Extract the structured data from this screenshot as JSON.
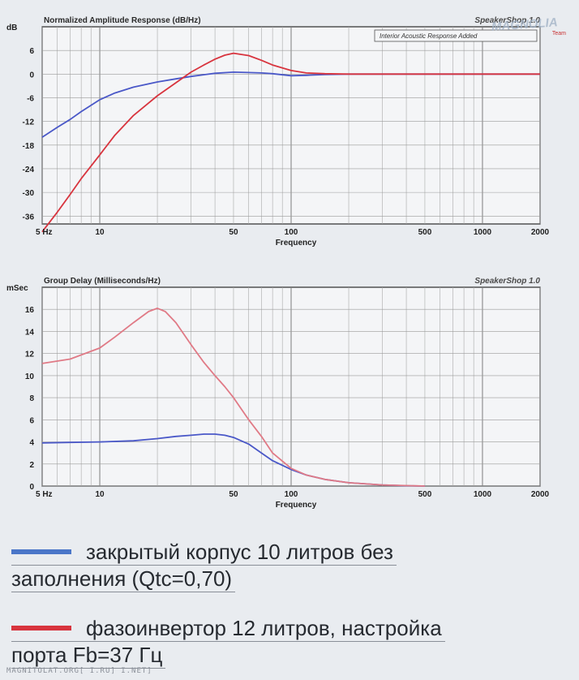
{
  "chart_data": [
    {
      "type": "line",
      "title": "Normalized Amplitude Response (dB/Hz)",
      "brand": "SpeakerShop 1.0",
      "legend_note": "Interior Acoustic Response Added",
      "xlabel": "Frequency",
      "ylabel": "dB",
      "x_scale": "log",
      "xlim": [
        5,
        2000
      ],
      "ylim": [
        -38,
        12
      ],
      "x_ticks": [
        {
          "value": 5,
          "label": "5 Hz"
        },
        {
          "value": 10,
          "label": "10"
        },
        {
          "value": 50,
          "label": "50"
        },
        {
          "value": 100,
          "label": "100"
        },
        {
          "value": 500,
          "label": "500"
        },
        {
          "value": 1000,
          "label": "1000"
        },
        {
          "value": 2000,
          "label": "2000"
        }
      ],
      "y_ticks": [
        {
          "value": 6,
          "label": "6"
        },
        {
          "value": 0,
          "label": "0"
        },
        {
          "value": -6,
          "label": "-6"
        },
        {
          "value": -12,
          "label": "-12"
        },
        {
          "value": -18,
          "label": "-18"
        },
        {
          "value": -24,
          "label": "-24"
        },
        {
          "value": -30,
          "label": "-30"
        },
        {
          "value": -36,
          "label": "-36"
        }
      ],
      "grid": true,
      "series": [
        {
          "color": "#4a58c8",
          "x": [
            5,
            6,
            7,
            8,
            10,
            12,
            15,
            20,
            25,
            30,
            40,
            50,
            60,
            70,
            80,
            100,
            120,
            150,
            200,
            300,
            500,
            1000,
            2000
          ],
          "y": [
            -16,
            -13.5,
            -11.5,
            -9.5,
            -6.5,
            -4.8,
            -3.3,
            -2,
            -1.2,
            -0.6,
            0.2,
            0.5,
            0.4,
            0.3,
            0.1,
            -0.4,
            -0.3,
            -0.1,
            0,
            0,
            0,
            0,
            0
          ]
        },
        {
          "color": "#d8343e",
          "x": [
            5,
            6,
            7,
            8,
            10,
            12,
            15,
            20,
            25,
            30,
            35,
            40,
            45,
            50,
            60,
            70,
            80,
            100,
            120,
            150,
            200,
            300,
            2000
          ],
          "y": [
            -40,
            -35,
            -30.5,
            -26.5,
            -20.5,
            -15.5,
            -10.5,
            -5.5,
            -2.2,
            0.5,
            2.3,
            3.8,
            4.8,
            5.3,
            4.7,
            3.5,
            2.3,
            0.9,
            0.3,
            0.1,
            0,
            0,
            0
          ]
        }
      ]
    },
    {
      "type": "line",
      "title": "Group Delay (Milliseconds/Hz)",
      "brand": "SpeakerShop 1.0",
      "xlabel": "Frequency",
      "ylabel": "mSec",
      "x_scale": "log",
      "xlim": [
        5,
        2000
      ],
      "ylim": [
        0,
        18
      ],
      "x_ticks": [
        {
          "value": 5,
          "label": "5 Hz"
        },
        {
          "value": 10,
          "label": "10"
        },
        {
          "value": 50,
          "label": "50"
        },
        {
          "value": 100,
          "label": "100"
        },
        {
          "value": 500,
          "label": "500"
        },
        {
          "value": 1000,
          "label": "1000"
        },
        {
          "value": 2000,
          "label": "2000"
        }
      ],
      "y_ticks": [
        {
          "value": 16,
          "label": "16"
        },
        {
          "value": 14,
          "label": "14"
        },
        {
          "value": 12,
          "label": "12"
        },
        {
          "value": 10,
          "label": "10"
        },
        {
          "value": 8,
          "label": "8"
        },
        {
          "value": 6,
          "label": "6"
        },
        {
          "value": 4,
          "label": "4"
        },
        {
          "value": 2,
          "label": "2"
        },
        {
          "value": 0,
          "label": "0"
        }
      ],
      "grid": true,
      "series": [
        {
          "color": "#4a58c8",
          "x": [
            5,
            7,
            10,
            15,
            20,
            25,
            30,
            35,
            40,
            45,
            50,
            60,
            70,
            80,
            100,
            120,
            150,
            200,
            300,
            400,
            500
          ],
          "y": [
            3.9,
            3.95,
            4.0,
            4.1,
            4.3,
            4.5,
            4.6,
            4.7,
            4.7,
            4.6,
            4.4,
            3.8,
            3.0,
            2.3,
            1.5,
            1.0,
            0.6,
            0.3,
            0.1,
            0.03,
            0
          ]
        },
        {
          "color": "#e07a86",
          "x": [
            5,
            7,
            10,
            12,
            15,
            18,
            20,
            22,
            25,
            30,
            35,
            40,
            45,
            50,
            60,
            70,
            80,
            100,
            120,
            150,
            200,
            300,
            500
          ],
          "y": [
            11.1,
            11.5,
            12.5,
            13.5,
            14.8,
            15.8,
            16.1,
            15.8,
            14.8,
            12.8,
            11.2,
            10.0,
            9.0,
            8.0,
            6.0,
            4.5,
            3.0,
            1.6,
            1.0,
            0.6,
            0.3,
            0.1,
            0
          ]
        }
      ]
    }
  ],
  "legend": [
    {
      "color": "#4a76c8",
      "text_line1": "закрытый корпус 10 литров без",
      "text_line2": "заполнения (Qtc=0,70)"
    },
    {
      "color": "#d8343e",
      "text_line1": "фазоинвертор 12 литров, настройка",
      "text_line2": "порта Fb=37 Гц"
    }
  ],
  "watermark": "MAGNOLIA",
  "watermark_sub": "Team",
  "footer": "MAGNITOLAT.ORG[ I.RU] I.NET]"
}
